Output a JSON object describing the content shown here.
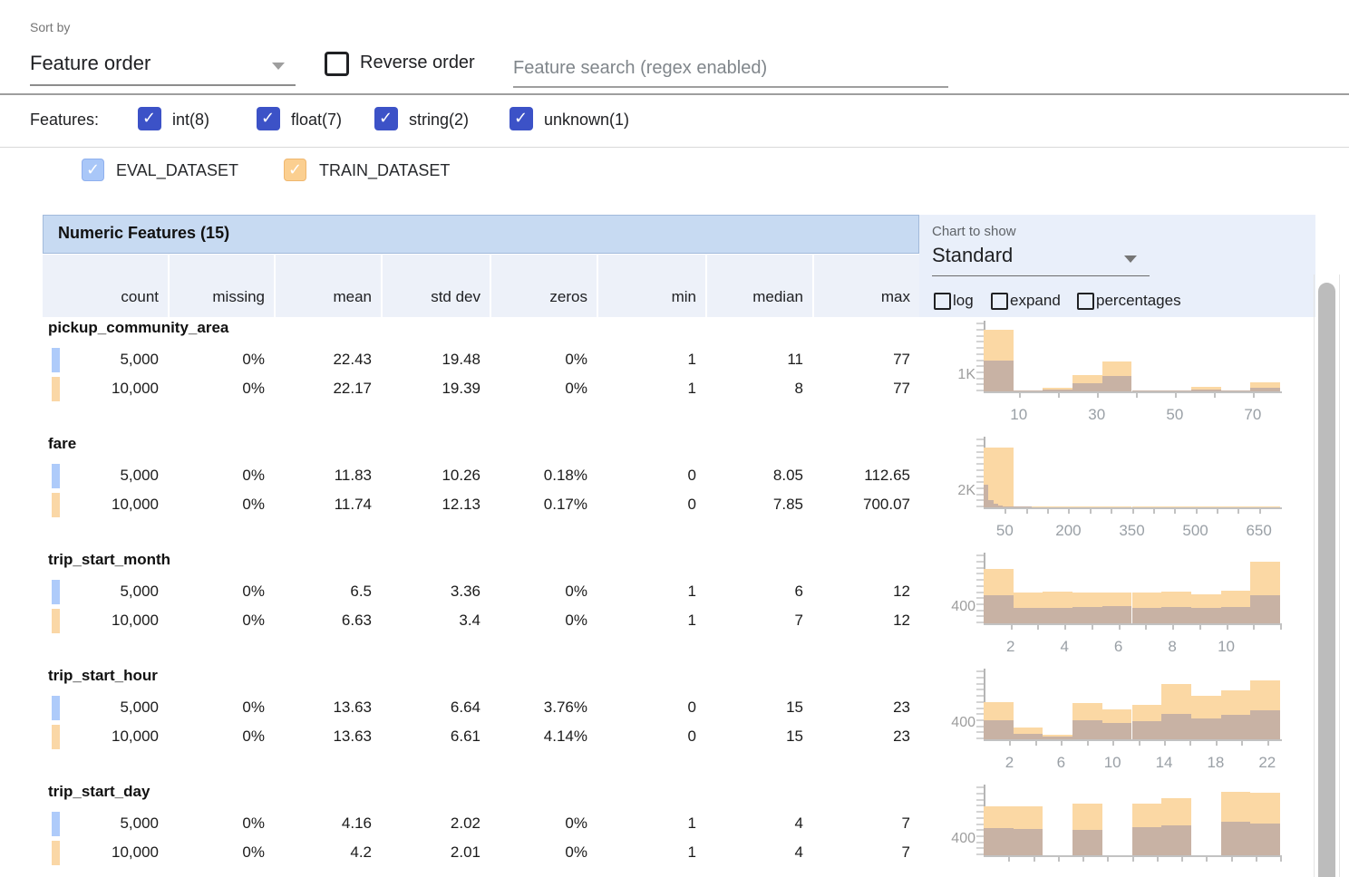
{
  "sort_bar": {
    "sort_by_label": "Sort by",
    "sort_value": "Feature order",
    "reverse_label": "Reverse order",
    "search_placeholder": "Feature search (regex enabled)"
  },
  "filters": {
    "label": "Features:",
    "items": [
      {
        "label": "int(8)",
        "checked": true
      },
      {
        "label": "float(7)",
        "checked": true
      },
      {
        "label": "string(2)",
        "checked": true
      },
      {
        "label": "unknown(1)",
        "checked": true
      }
    ],
    "checkbox_color": "#3c52c7"
  },
  "datasets": [
    {
      "name": "EVAL_DATASET",
      "checked": true,
      "color": "#a9c7f8",
      "swatch_color": "#aecbfa"
    },
    {
      "name": "TRAIN_DATASET",
      "checked": true,
      "color": "#fbcf90",
      "swatch_color": "#fad7a6"
    }
  ],
  "table": {
    "title": "Numeric Features (15)",
    "columns": [
      "count",
      "missing",
      "mean",
      "std dev",
      "zeros",
      "min",
      "median",
      "max"
    ],
    "title_bg": "#c7daf2",
    "header_bg": "#edf1f9"
  },
  "chart_controls": {
    "label": "Chart to show",
    "value": "Standard",
    "checkboxes": [
      {
        "label": "log",
        "checked": false
      },
      {
        "label": "expand",
        "checked": false
      },
      {
        "label": "percentages",
        "checked": false
      }
    ]
  },
  "hist_colors": {
    "train": "#fbd8a4",
    "eval_overlap": "#c8b2a4"
  },
  "features": [
    {
      "name": "pickup_community_area",
      "rows": [
        [
          "5,000",
          "0%",
          "22.43",
          "19.48",
          "0%",
          "1",
          "11",
          "77"
        ],
        [
          "10,000",
          "0%",
          "22.17",
          "19.39",
          "0%",
          "1",
          "8",
          "77"
        ]
      ],
      "hist": {
        "type": "bar",
        "y_label": "1K",
        "y_max": 4400,
        "x_min": 1,
        "x_max": 77,
        "ticks": [
          {
            "v": 10,
            "label": "10"
          },
          {
            "v": 20,
            "label": ""
          },
          {
            "v": 30,
            "label": "30"
          },
          {
            "v": 40,
            "label": ""
          },
          {
            "v": 50,
            "label": "50"
          },
          {
            "v": 60,
            "label": ""
          },
          {
            "v": 70,
            "label": "70"
          }
        ],
        "train": [
          4000,
          40,
          230,
          1050,
          1930,
          30,
          15,
          280,
          15,
          590
        ],
        "eval": [
          2000,
          20,
          120,
          530,
          1000,
          15,
          8,
          120,
          8,
          235
        ]
      }
    },
    {
      "name": "fare",
      "rows": [
        [
          "5,000",
          "0%",
          "11.83",
          "10.26",
          "0.18%",
          "0",
          "8.05",
          "112.65"
        ],
        [
          "10,000",
          "0%",
          "11.74",
          "12.13",
          "0.17%",
          "0",
          "7.85",
          "700.07"
        ]
      ],
      "hist": {
        "type": "bar",
        "y_label": "2K",
        "y_max": 8800,
        "x_min": 0,
        "x_max": 700,
        "ticks": [
          {
            "v": 50,
            "label": "50"
          },
          {
            "v": 100,
            "label": ""
          },
          {
            "v": 150,
            "label": ""
          },
          {
            "v": 200,
            "label": "200"
          },
          {
            "v": 250,
            "label": ""
          },
          {
            "v": 300,
            "label": ""
          },
          {
            "v": 350,
            "label": "350"
          },
          {
            "v": 400,
            "label": ""
          },
          {
            "v": 450,
            "label": ""
          },
          {
            "v": 500,
            "label": "500"
          },
          {
            "v": 550,
            "label": ""
          },
          {
            "v": 600,
            "label": ""
          },
          {
            "v": 650,
            "label": "650"
          }
        ],
        "train": [
          7800,
          60,
          15,
          8,
          5,
          3,
          2,
          1,
          1,
          2
        ],
        "eval": [
          2900,
          950,
          420,
          250,
          160,
          110,
          80,
          55,
          40,
          30
        ],
        "eval_range": [
          0,
          112.65
        ]
      }
    },
    {
      "name": "trip_start_month",
      "rows": [
        [
          "5,000",
          "0%",
          "6.5",
          "3.36",
          "0%",
          "1",
          "6",
          "12"
        ],
        [
          "10,000",
          "0%",
          "6.63",
          "3.4",
          "0%",
          "1",
          "7",
          "12"
        ]
      ],
      "hist": {
        "type": "bar",
        "y_label": "400",
        "y_max": 1765,
        "x_min": 1,
        "x_max": 12,
        "ticks": [
          {
            "v": 2,
            "label": "2"
          },
          {
            "v": 3,
            "label": ""
          },
          {
            "v": 4,
            "label": "4"
          },
          {
            "v": 5,
            "label": ""
          },
          {
            "v": 6,
            "label": "6"
          },
          {
            "v": 7,
            "label": ""
          },
          {
            "v": 8,
            "label": "8"
          },
          {
            "v": 9,
            "label": ""
          },
          {
            "v": 10,
            "label": "10"
          },
          {
            "v": 11,
            "label": ""
          },
          {
            "v": 12,
            "label": ""
          }
        ],
        "train": [
          1410,
          790,
          820,
          810,
          800,
          790,
          830,
          760,
          840,
          1600
        ],
        "eval": [
          730,
          400,
          410,
          430,
          440,
          400,
          420,
          400,
          420,
          730
        ]
      }
    },
    {
      "name": "trip_start_hour",
      "rows": [
        [
          "5,000",
          "0%",
          "13.63",
          "6.64",
          "3.76%",
          "0",
          "15",
          "23"
        ],
        [
          "10,000",
          "0%",
          "13.63",
          "6.61",
          "4.14%",
          "0",
          "15",
          "23"
        ]
      ],
      "hist": {
        "type": "bar",
        "y_label": "400",
        "y_max": 1765,
        "x_min": 0,
        "x_max": 23,
        "ticks": [
          {
            "v": 2,
            "label": "2"
          },
          {
            "v": 4,
            "label": ""
          },
          {
            "v": 6,
            "label": "6"
          },
          {
            "v": 8,
            "label": ""
          },
          {
            "v": 10,
            "label": "10"
          },
          {
            "v": 12,
            "label": ""
          },
          {
            "v": 14,
            "label": "14"
          },
          {
            "v": 16,
            "label": ""
          },
          {
            "v": 18,
            "label": "18"
          },
          {
            "v": 20,
            "label": ""
          },
          {
            "v": 22,
            "label": "22"
          }
        ],
        "train": [
          965,
          305,
          120,
          940,
          780,
          890,
          1440,
          1130,
          1270,
          1530
        ],
        "eval": [
          495,
          150,
          70,
          495,
          420,
          470,
          660,
          540,
          635,
          755
        ]
      }
    },
    {
      "name": "trip_start_day",
      "rows": [
        [
          "5,000",
          "0%",
          "4.16",
          "2.02",
          "0%",
          "1",
          "4",
          "7"
        ],
        [
          "10,000",
          "0%",
          "4.2",
          "2.01",
          "0%",
          "1",
          "4",
          "7"
        ]
      ],
      "hist": {
        "type": "bar",
        "y_label": "400",
        "y_max": 1500,
        "x_min": 1,
        "x_max": 7,
        "ticks": [
          {
            "v": 1.5,
            "label": ""
          },
          {
            "v": 2,
            "label": ""
          },
          {
            "v": 2.5,
            "label": ""
          },
          {
            "v": 3,
            "label": ""
          },
          {
            "v": 3.5,
            "label": ""
          },
          {
            "v": 4,
            "label": ""
          },
          {
            "v": 4.5,
            "label": ""
          },
          {
            "v": 5,
            "label": ""
          },
          {
            "v": 5.5,
            "label": ""
          },
          {
            "v": 6,
            "label": ""
          },
          {
            "v": 6.5,
            "label": ""
          },
          {
            "v": 7,
            "label": ""
          }
        ],
        "train": [
          1080,
          1080,
          0,
          1140,
          0,
          1140,
          1260,
          0,
          1400,
          1380
        ],
        "eval": [
          600,
          590,
          0,
          560,
          0,
          620,
          660,
          0,
          740,
          700
        ]
      }
    }
  ],
  "icons": {
    "checkmark": "✓",
    "dropdown_arrow": "▾"
  }
}
